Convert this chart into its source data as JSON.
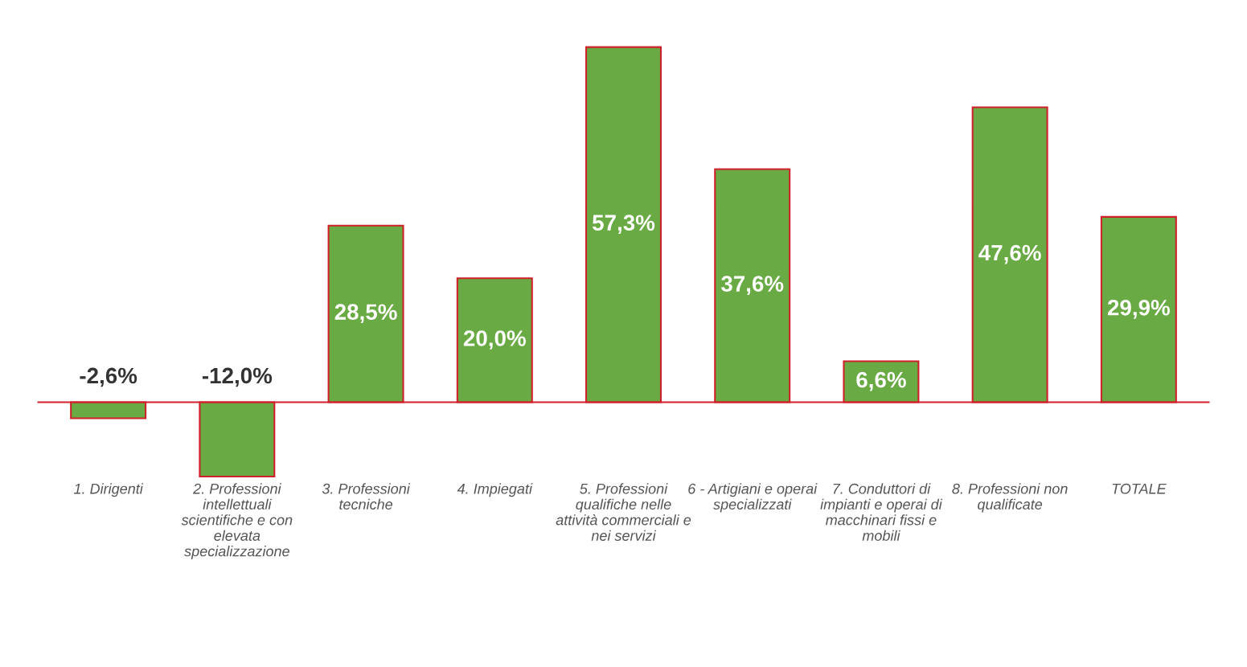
{
  "chart_data": {
    "type": "bar",
    "categories": [
      "1. Dirigenti",
      "2. Professioni intellettuali scientifiche e con elevata specializzazione",
      "3. Professioni tecniche",
      "4. Impiegati",
      "5. Professioni qualifiche nelle attività commerciali e nei servizi",
      "6 - Artigiani e operai specializzati",
      "7. Conduttori di impianti e operai di macchinari fissi e mobili",
      "8. Professioni non qualificate",
      "TOTALE"
    ],
    "values": [
      -2.6,
      -12.0,
      28.5,
      20.0,
      57.3,
      37.6,
      6.6,
      47.6,
      29.9
    ],
    "value_labels": [
      "-2,6%",
      "-12,0%",
      "28,5%",
      "20,0%",
      "57,3%",
      "37,6%",
      "6,6%",
      "47,6%",
      "29,9%"
    ],
    "color": "#6aaa45",
    "ref_lines": [
      {
        "axis": "y",
        "value": 0,
        "label": null,
        "color": "#d0202a"
      }
    ],
    "grid": false,
    "legend": false
  }
}
